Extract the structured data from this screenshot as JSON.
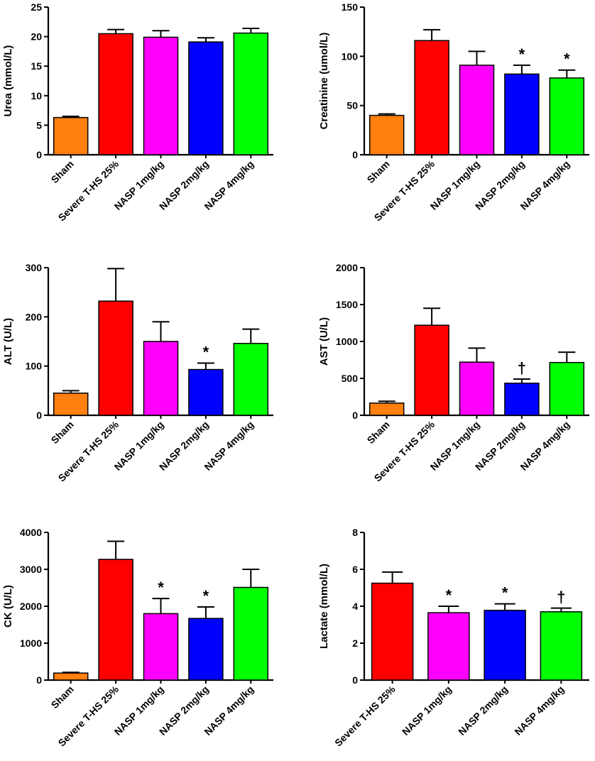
{
  "figure_colors": {
    "Sham": "#ff7f0f",
    "Severe T-HS 25%": "#ff0000",
    "NASP 1mg/kg": "#ff00ff",
    "NASP 2mg/kg": "#0000ff",
    "NASP 4mg/kg": "#00ff00",
    "outline": "#000000"
  },
  "chart_data": [
    {
      "type": "bar",
      "id": "urea",
      "ylabel": "Urea (mmol/L)",
      "ylim": [
        0,
        25
      ],
      "yticks": [
        0,
        5,
        10,
        15,
        20,
        25
      ],
      "categories": [
        "Sham",
        "Severe T-HS 25%",
        "NASP 1mg/kg",
        "NASP 2mg/kg",
        "NASP 4mg/kg"
      ],
      "values": [
        6.3,
        20.5,
        19.9,
        19.1,
        20.6
      ],
      "errors": [
        0.2,
        0.7,
        1.1,
        0.7,
        0.8
      ],
      "annotations": [
        "",
        "",
        "",
        "",
        ""
      ]
    },
    {
      "type": "bar",
      "id": "creatinine",
      "ylabel": "Creatinine (umol/L)",
      "ylim": [
        0,
        150
      ],
      "yticks": [
        0,
        50,
        100,
        150
      ],
      "categories": [
        "Sham",
        "Severe T-HS 25%",
        "NASP 1mg/kg",
        "NASP 2mg/kg",
        "NASP 4mg/kg"
      ],
      "values": [
        40,
        116,
        91,
        82,
        78
      ],
      "errors": [
        1.5,
        11,
        14,
        9,
        8
      ],
      "annotations": [
        "",
        "",
        "",
        "*",
        "*"
      ]
    },
    {
      "type": "bar",
      "id": "alt",
      "ylabel": "ALT (U/L)",
      "ylim": [
        0,
        300
      ],
      "yticks": [
        0,
        100,
        200,
        300
      ],
      "categories": [
        "Sham",
        "Severe T-HS 25%",
        "NASP 1mg/kg",
        "NASP 2mg/kg",
        "NASP 4mg/kg"
      ],
      "values": [
        45,
        232,
        150,
        93,
        146
      ],
      "errors": [
        5,
        66,
        40,
        13,
        29
      ],
      "annotations": [
        "",
        "",
        "",
        "*",
        ""
      ]
    },
    {
      "type": "bar",
      "id": "ast",
      "ylabel": "AST (U/L)",
      "ylim": [
        0,
        2000
      ],
      "yticks": [
        0,
        500,
        1000,
        1500,
        2000
      ],
      "categories": [
        "Sham",
        "Severe T-HS 25%",
        "NASP 1mg/kg",
        "NASP 2mg/kg",
        "NASP 4mg/kg"
      ],
      "values": [
        165,
        1220,
        720,
        435,
        715
      ],
      "errors": [
        25,
        230,
        190,
        55,
        140
      ],
      "annotations": [
        "",
        "",
        "",
        "†",
        ""
      ]
    },
    {
      "type": "bar",
      "id": "ck",
      "ylabel": "CK (U/L)",
      "ylim": [
        0,
        4000
      ],
      "yticks": [
        0,
        1000,
        2000,
        3000,
        4000
      ],
      "categories": [
        "Sham",
        "Severe T-HS 25%",
        "NASP 1mg/kg",
        "NASP 2mg/kg",
        "NASP 4mg/kg"
      ],
      "values": [
        190,
        3270,
        1800,
        1670,
        2510
      ],
      "errors": [
        20,
        490,
        410,
        310,
        490
      ],
      "annotations": [
        "",
        "",
        "*",
        "*",
        ""
      ]
    },
    {
      "type": "bar",
      "id": "lactate",
      "ylabel": "Lactate (mmol/L)",
      "ylim": [
        0,
        8
      ],
      "yticks": [
        0,
        2,
        4,
        6,
        8
      ],
      "categories": [
        "Severe T-HS 25%",
        "NASP 1mg/kg",
        "NASP 2mg/kg",
        "NASP 4mg/kg"
      ],
      "values": [
        5.25,
        3.65,
        3.78,
        3.7
      ],
      "errors": [
        0.6,
        0.35,
        0.35,
        0.2
      ],
      "annotations": [
        "",
        "*",
        "*",
        "†"
      ]
    }
  ]
}
